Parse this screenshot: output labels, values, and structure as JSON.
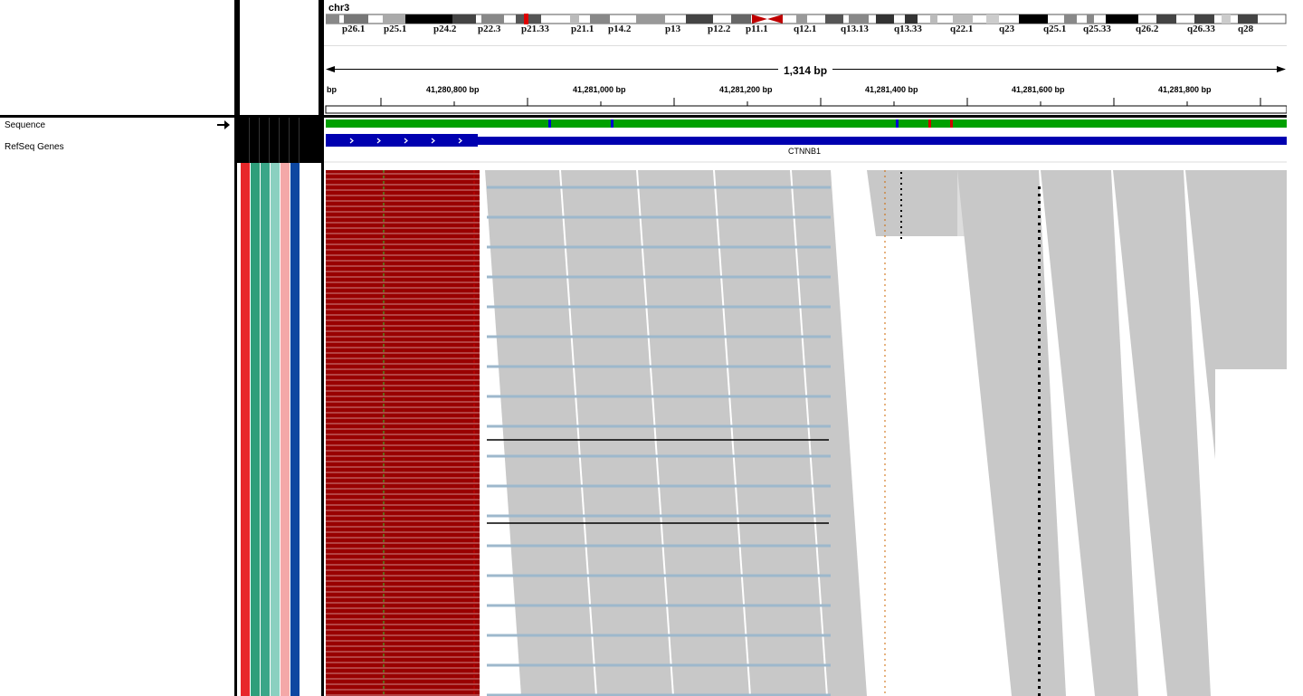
{
  "ideogram": {
    "chromosome": "chr3",
    "bands": [
      "p26.1",
      "p25.1",
      "p24.2",
      "p22.3",
      "p21.33",
      "p21.1",
      "p14.2",
      "p13",
      "p12.2",
      "p11.1",
      "q12.1",
      "q13.13",
      "q13.33",
      "q22.1",
      "q23",
      "q25.1",
      "q25.33",
      "q26.2",
      "q26.33",
      "q28"
    ]
  },
  "ruler": {
    "span": "1,314 bp",
    "unit": "bp",
    "ticks": [
      "41,280,800 bp",
      "41,281,000 bp",
      "41,281,200 bp",
      "41,281,400 bp",
      "41,281,600 bp",
      "41,281,800 bp"
    ]
  },
  "tracks": {
    "sequence": "Sequence",
    "refseq": "RefSeq Genes"
  },
  "gene": {
    "name": "CTNNB1"
  },
  "colors": {
    "attr": [
      "#e8272a",
      "#2e9e7a",
      "#3aa688",
      "#8ad0c0",
      "#f4a8a8",
      "#0d47a1",
      "#ffffff"
    ],
    "gene": "#0000b0",
    "read": "#c8c8c8",
    "soft": "#990000",
    "bluegrey": "#9db8cc"
  }
}
